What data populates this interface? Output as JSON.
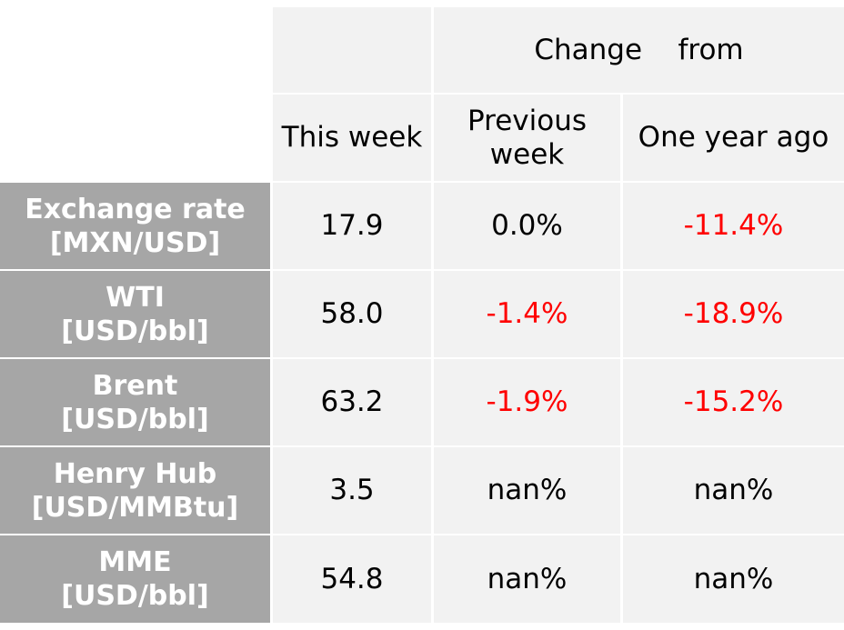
{
  "header": {
    "change_from": "Change    from",
    "this_week": "This week",
    "previous_week_line1": "Previous",
    "previous_week_line2": "week",
    "one_year_ago": "One year ago"
  },
  "rows": [
    {
      "label_line1": "Exchange rate",
      "label_line2": "[MXN/USD]",
      "this_week": "17.9",
      "prev_week": "0.0%",
      "year_ago": "-11.4%"
    },
    {
      "label_line1": "WTI",
      "label_line2": "[USD/bbl]",
      "this_week": "58.0",
      "prev_week": "-1.4%",
      "year_ago": "-18.9%"
    },
    {
      "label_line1": "Brent",
      "label_line2": "[USD/bbl]",
      "this_week": "63.2",
      "prev_week": "-1.9%",
      "year_ago": "-15.2%"
    },
    {
      "label_line1": "Henry Hub",
      "label_line2": "[USD/MMBtu]",
      "this_week": "3.5",
      "prev_week": "nan%",
      "year_ago": "nan%"
    },
    {
      "label_line1": "MME",
      "label_line2": "[USD/bbl]",
      "this_week": "54.8",
      "prev_week": "nan%",
      "year_ago": "nan%"
    }
  ],
  "colors": {
    "negative": "#ff0000",
    "label_bg": "#a6a6a6",
    "cell_bg": "#f2f2f2"
  }
}
